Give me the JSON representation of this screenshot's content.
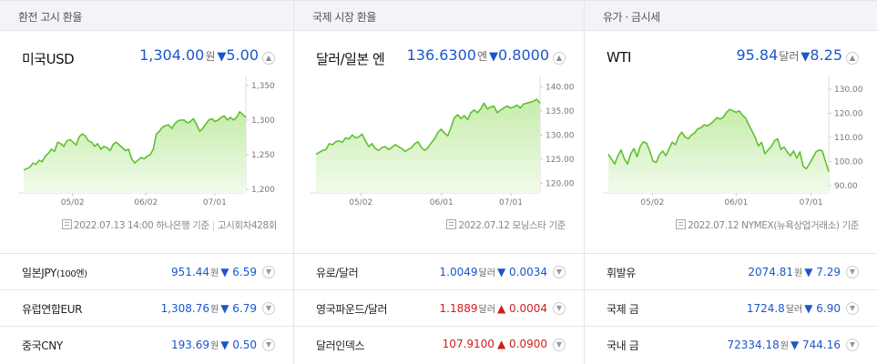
{
  "panels": [
    {
      "header": "환전 고시 환율",
      "main": {
        "name": "미국USD",
        "value": "1,304.00",
        "unit": "원",
        "arrow": "▼",
        "change": "5.00",
        "direction": "down"
      },
      "source": {
        "date": "2022.07.13 14:00",
        "provider": "하나은행 기준",
        "extra": "고시회차428회"
      },
      "subs": [
        {
          "name": "일본JPY",
          "name_small": "(100엔)",
          "value": "951.44",
          "unit": "원",
          "arrow": "▼",
          "change": "6.59",
          "direction": "down"
        },
        {
          "name": "유럽연합EUR",
          "name_small": "",
          "value": "1,308.76",
          "unit": "원",
          "arrow": "▼",
          "change": "6.79",
          "direction": "down"
        },
        {
          "name": "중국CNY",
          "name_small": "",
          "value": "193.69",
          "unit": "원",
          "arrow": "▼",
          "change": "0.50",
          "direction": "down"
        }
      ]
    },
    {
      "header": "국제 시장 환율",
      "main": {
        "name": "달러/일본 엔",
        "value": "136.6300",
        "unit": "엔",
        "arrow": "▼",
        "change": "0.8000",
        "direction": "down"
      },
      "source": {
        "date": "2022.07.12",
        "provider": "모닝스타 기준",
        "extra": ""
      },
      "subs": [
        {
          "name": "유로/달러",
          "name_small": "",
          "value": "1.0049",
          "unit": "달러",
          "arrow": "▼",
          "change": "0.0034",
          "direction": "down"
        },
        {
          "name": "영국파운드/달러",
          "name_small": "",
          "value": "1.1889",
          "unit": "달러",
          "arrow": "▲",
          "change": "0.0004",
          "direction": "up"
        },
        {
          "name": "달러인덱스",
          "name_small": "",
          "value": "107.9100",
          "unit": "",
          "arrow": "▲",
          "change": "0.0900",
          "direction": "up"
        }
      ]
    },
    {
      "header": "유가 · 금시세",
      "main": {
        "name": "WTI",
        "value": "95.84",
        "unit": "달러",
        "arrow": "▼",
        "change": "8.25",
        "direction": "down"
      },
      "source": {
        "date": "2022.07.12",
        "provider": "NYMEX(뉴욕상업거래소) 기준",
        "extra": ""
      },
      "subs": [
        {
          "name": "휘발유",
          "name_small": "",
          "value": "2074.81",
          "unit": "원",
          "arrow": "▼",
          "change": "7.29",
          "direction": "down"
        },
        {
          "name": "국제 금",
          "name_small": "",
          "value": "1724.8",
          "unit": "달러",
          "arrow": "▼",
          "change": "6.90",
          "direction": "down"
        },
        {
          "name": "국내 금",
          "name_small": "",
          "value": "72334.18",
          "unit": "원",
          "arrow": "▼",
          "change": "744.16",
          "direction": "down"
        }
      ]
    }
  ],
  "colors": {
    "down": "#1a57c9",
    "up": "#d21c1c",
    "line": "#5fc12e",
    "fill_top": "#c6ecaa",
    "fill_bottom": "#f2fbec"
  },
  "toggle_icon": "chevron-up-icon",
  "sub_toggle_icon": "chevron-down-icon",
  "chart_data": [
    {
      "type": "area",
      "x_ticks": [
        "05/02",
        "06/02",
        "07/01"
      ],
      "y_ticks": [
        1200,
        1250,
        1300,
        1350
      ],
      "ylim": [
        1195,
        1355
      ],
      "series": [
        {
          "values": [
            1228,
            1230,
            1232,
            1238,
            1236,
            1242,
            1240,
            1248,
            1252,
            1258,
            1255,
            1268,
            1266,
            1262,
            1270,
            1272,
            1268,
            1264,
            1276,
            1280,
            1277,
            1270,
            1268,
            1262,
            1266,
            1258,
            1262,
            1260,
            1256,
            1265,
            1268,
            1264,
            1260,
            1256,
            1258,
            1244,
            1238,
            1242,
            1246,
            1244,
            1248,
            1250,
            1258,
            1280,
            1284,
            1290,
            1292,
            1293,
            1288,
            1295,
            1299,
            1300,
            1300,
            1296,
            1298,
            1302,
            1294,
            1284,
            1288,
            1294,
            1300,
            1302,
            1298,
            1300,
            1304,
            1306,
            1300,
            1304,
            1300,
            1304,
            1312,
            1308,
            1304
          ]
        }
      ]
    },
    {
      "type": "area",
      "x_ticks": [
        "05/02",
        "06/01",
        "07/01"
      ],
      "y_ticks": [
        120,
        125,
        130,
        135,
        140
      ],
      "ylim": [
        118,
        141
      ],
      "series": [
        {
          "values": [
            126.0,
            126.4,
            126.8,
            127.0,
            128.2,
            128.0,
            128.6,
            128.8,
            128.5,
            129.4,
            129.2,
            130.0,
            129.4,
            129.6,
            130.2,
            128.8,
            127.6,
            128.2,
            127.2,
            126.8,
            127.4,
            127.6,
            127.0,
            127.4,
            128.0,
            127.6,
            127.2,
            126.6,
            127.0,
            127.4,
            128.2,
            128.6,
            127.4,
            126.8,
            127.4,
            128.4,
            129.2,
            130.6,
            131.2,
            130.4,
            129.8,
            131.6,
            133.6,
            134.2,
            133.4,
            134.0,
            133.2,
            134.6,
            135.2,
            134.6,
            135.4,
            136.6,
            135.4,
            135.8,
            136.0,
            134.6,
            135.2,
            135.6,
            136.0,
            135.6,
            135.8,
            136.2,
            135.6,
            136.4,
            136.6,
            136.8,
            137.0,
            137.4,
            136.6
          ]
        }
      ]
    },
    {
      "type": "area",
      "x_ticks": [
        "05/02",
        "06/01",
        "07/01"
      ],
      "y_ticks": [
        90,
        100,
        110,
        120,
        130
      ],
      "ylim": [
        87,
        133
      ],
      "series": [
        {
          "values": [
            103.0,
            101.0,
            99.0,
            102.4,
            104.8,
            101.2,
            99.0,
            103.2,
            105.4,
            102.0,
            106.4,
            108.2,
            107.6,
            104.2,
            100.2,
            99.6,
            102.8,
            104.4,
            102.4,
            105.2,
            108.0,
            107.0,
            110.4,
            112.2,
            110.2,
            109.4,
            111.0,
            111.8,
            113.6,
            114.0,
            115.2,
            114.8,
            115.6,
            116.8,
            118.2,
            117.6,
            118.4,
            120.4,
            121.6,
            121.0,
            120.4,
            121.0,
            119.2,
            118.0,
            115.2,
            112.6,
            110.0,
            106.4,
            108.0,
            103.2,
            104.8,
            106.2,
            108.6,
            109.4,
            105.0,
            106.0,
            104.0,
            102.4,
            104.4,
            101.4,
            104.0,
            98.0,
            97.0,
            99.2,
            101.6,
            104.0,
            104.8,
            104.4,
            100.0,
            95.8
          ]
        }
      ]
    }
  ]
}
